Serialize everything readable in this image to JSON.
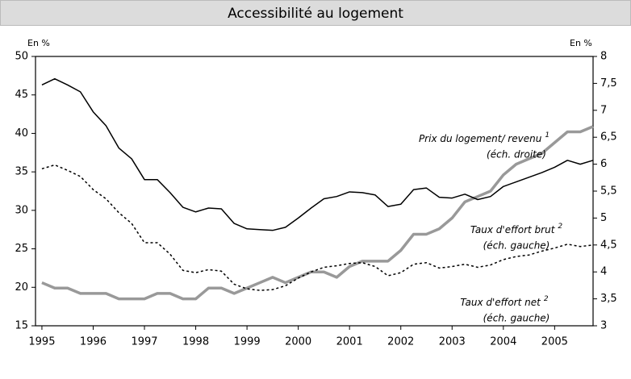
{
  "chart_data": {
    "type": "line",
    "title": "Accessibilité au logement",
    "y_unit_label": "En %",
    "y2_unit_label": "En %",
    "x": [
      1995,
      1995.25,
      1995.5,
      1995.75,
      1996,
      1996.25,
      1996.5,
      1996.75,
      1997,
      1997.25,
      1997.5,
      1997.75,
      1998,
      1998.25,
      1998.5,
      1998.75,
      1999,
      1999.25,
      1999.5,
      1999.75,
      2000,
      2000.25,
      2000.5,
      2000.75,
      2001,
      2001.25,
      2001.5,
      2001.75,
      2002,
      2002.25,
      2002.5,
      2002.75,
      2003,
      2003.25,
      2003.5,
      2003.75,
      2004,
      2004.25,
      2004.5,
      2004.75,
      2005,
      2005.25,
      2005.5,
      2005.75
    ],
    "xlim": [
      1994.875,
      2005.75
    ],
    "xticks": [
      1995,
      1996,
      1997,
      1998,
      1999,
      2000,
      2001,
      2002,
      2003,
      2004,
      2005
    ],
    "ylim": [
      15,
      50
    ],
    "yticks": [
      15,
      20,
      25,
      30,
      35,
      40,
      45,
      50
    ],
    "y2lim": [
      3,
      8
    ],
    "y2ticks": [
      3,
      {
        "value": 3.5,
        "label": "3,5"
      },
      4,
      {
        "value": 4.5,
        "label": "4,5"
      },
      5,
      {
        "value": 5.5,
        "label": "5,5"
      },
      6,
      {
        "value": 6.5,
        "label": "6,5"
      },
      7,
      {
        "value": 7.5,
        "label": "7,5"
      },
      8
    ],
    "series": [
      {
        "name": "Prix du logement/ revenu",
        "note": "1",
        "scale_label": "(éch. droite)",
        "axis": "y2",
        "color": "#999999",
        "style": "solid",
        "width": 3.5,
        "values": [
          3.8,
          3.7,
          3.7,
          3.6,
          3.6,
          3.6,
          3.5,
          3.5,
          3.5,
          3.6,
          3.6,
          3.5,
          3.5,
          3.7,
          3.7,
          3.6,
          3.7,
          3.8,
          3.9,
          3.8,
          3.9,
          4.0,
          4.0,
          3.9,
          4.1,
          4.2,
          4.2,
          4.2,
          4.4,
          4.7,
          4.7,
          4.8,
          5.0,
          5.3,
          5.4,
          5.5,
          5.8,
          6.0,
          6.1,
          6.2,
          6.4,
          6.6,
          6.6,
          6.7
        ]
      },
      {
        "name": "Taux d'effort brut",
        "note": "2",
        "scale_label": "(éch. gauche)",
        "axis": "y",
        "color": "#000000",
        "style": "solid",
        "width": 1.5,
        "values": [
          46.3,
          47.1,
          46.3,
          45.4,
          42.8,
          41.0,
          38.1,
          36.7,
          34.0,
          34.0,
          32.3,
          30.4,
          29.8,
          30.3,
          30.2,
          28.3,
          27.6,
          27.5,
          27.4,
          27.8,
          29.0,
          30.3,
          31.5,
          31.8,
          32.4,
          32.3,
          32.0,
          30.5,
          30.8,
          32.7,
          32.9,
          31.7,
          31.6,
          32.1,
          31.4,
          31.8,
          33.1,
          33.7,
          34.3,
          34.9,
          35.6,
          36.5,
          36.0,
          36.5
        ]
      },
      {
        "name": "Taux d'effort net",
        "note": "2",
        "scale_label": "(éch. gauche)",
        "axis": "y",
        "color": "#000000",
        "style": "dashed",
        "width": 1.5,
        "values": [
          35.4,
          35.9,
          35.2,
          34.4,
          32.7,
          31.5,
          29.7,
          28.3,
          25.8,
          25.8,
          24.3,
          22.2,
          21.9,
          22.3,
          22.1,
          20.4,
          19.8,
          19.6,
          19.7,
          20.2,
          21.2,
          22.0,
          22.6,
          22.8,
          23.1,
          23.2,
          22.7,
          21.5,
          21.9,
          23.0,
          23.2,
          22.5,
          22.7,
          23.0,
          22.6,
          22.9,
          23.6,
          24.0,
          24.2,
          24.7,
          25.1,
          25.6,
          25.3,
          25.5
        ]
      }
    ]
  }
}
